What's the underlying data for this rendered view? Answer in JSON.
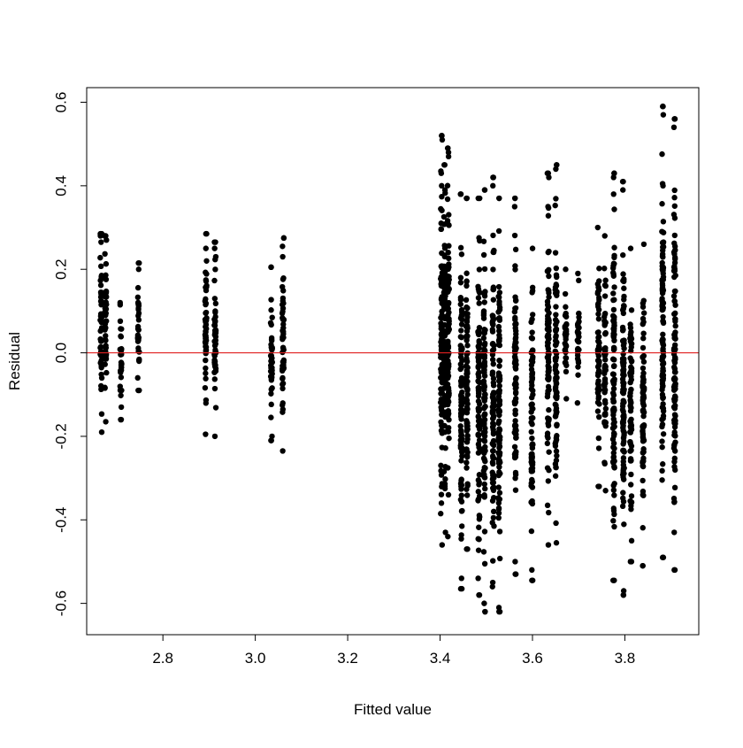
{
  "chart_data": {
    "type": "scatter",
    "title": "",
    "xlabel": "Fitted value",
    "ylabel": "Residual",
    "xlim": [
      2.635,
      3.96
    ],
    "ylim": [
      -0.675,
      0.635
    ],
    "x_ticks": [
      2.8,
      3.0,
      3.2,
      3.4,
      3.6,
      3.8
    ],
    "x_tick_labels": [
      "2.8",
      "3.0",
      "3.2",
      "3.4",
      "3.6",
      "3.8"
    ],
    "y_ticks": [
      -0.6,
      -0.4,
      -0.2,
      0.0,
      0.2,
      0.4,
      0.6
    ],
    "y_tick_labels": [
      "-0.6",
      "-0.4",
      "-0.2",
      "0.0",
      "0.2",
      "0.4",
      "0.6"
    ],
    "grid": false,
    "legend": "none",
    "point_color": "#000000",
    "reference_line": {
      "y": 0,
      "color": "#e02020"
    },
    "clusters": [
      {
        "x": 2.666,
        "y_min": -0.19,
        "y_max": 0.285,
        "points": [
          0.285,
          0.28,
          0.265
        ]
      },
      {
        "x": 2.676,
        "y_min": -0.165,
        "y_max": 0.28,
        "points": [
          0.28,
          0.27
        ]
      },
      {
        "x": 2.709,
        "y_min": -0.16,
        "y_max": 0.12,
        "points": [
          0.115,
          -0.09,
          -0.13,
          -0.16
        ]
      },
      {
        "x": 2.747,
        "y_min": -0.09,
        "y_max": 0.215,
        "points": [
          0.215,
          0.2,
          -0.02,
          -0.06,
          -0.09
        ]
      },
      {
        "x": 2.893,
        "y_min": -0.195,
        "y_max": 0.285,
        "points": [
          0.285,
          0.25,
          0.22
        ]
      },
      {
        "x": 2.913,
        "y_min": -0.2,
        "y_max": 0.265,
        "points": [
          0.265,
          0.25,
          0.23
        ]
      },
      {
        "x": 3.035,
        "y_min": -0.21,
        "y_max": 0.205,
        "points": [
          0.205,
          -0.2,
          -0.21
        ]
      },
      {
        "x": 3.06,
        "y_min": -0.235,
        "y_max": 0.275,
        "points": [
          0.275,
          0.255,
          0.23
        ]
      },
      {
        "x": 3.403,
        "y_min": -0.46,
        "y_max": 0.52,
        "points": [
          0.52,
          0.51,
          0.43,
          0.4
        ]
      },
      {
        "x": 3.41,
        "y_min": -0.43,
        "y_max": 0.45,
        "points": [
          0.45,
          0.39
        ]
      },
      {
        "x": 3.418,
        "y_min": -0.44,
        "y_max": 0.49,
        "points": [
          0.49,
          0.48,
          0.47
        ]
      },
      {
        "x": 3.446,
        "y_min": -0.565,
        "y_max": 0.38,
        "points": [
          0.38,
          -0.54,
          -0.565
        ]
      },
      {
        "x": 3.458,
        "y_min": -0.47,
        "y_max": 0.37,
        "points": [
          0.37,
          -0.47
        ]
      },
      {
        "x": 3.484,
        "y_min": -0.58,
        "y_max": 0.37,
        "points": [
          0.37,
          -0.54,
          -0.58
        ]
      },
      {
        "x": 3.496,
        "y_min": -0.62,
        "y_max": 0.39,
        "points": [
          0.39,
          -0.6,
          -0.62
        ]
      },
      {
        "x": 3.515,
        "y_min": -0.56,
        "y_max": 0.42,
        "points": [
          0.42,
          0.4,
          -0.55
        ]
      },
      {
        "x": 3.528,
        "y_min": -0.62,
        "y_max": 0.37,
        "points": [
          0.37,
          -0.61,
          -0.62
        ]
      },
      {
        "x": 3.563,
        "y_min": -0.53,
        "y_max": 0.37,
        "points": [
          0.37,
          0.35,
          -0.5,
          -0.53
        ]
      },
      {
        "x": 3.599,
        "y_min": -0.545,
        "y_max": 0.25,
        "points": [
          -0.52,
          -0.545
        ]
      },
      {
        "x": 3.634,
        "y_min": -0.46,
        "y_max": 0.43,
        "points": [
          0.43,
          0.42,
          0.35
        ]
      },
      {
        "x": 3.651,
        "y_min": -0.455,
        "y_max": 0.45,
        "points": [
          0.45,
          0.44
        ]
      },
      {
        "x": 3.672,
        "y_min": -0.11,
        "y_max": 0.2,
        "points": []
      },
      {
        "x": 3.699,
        "y_min": -0.12,
        "y_max": 0.19,
        "points": []
      },
      {
        "x": 3.743,
        "y_min": -0.32,
        "y_max": 0.3,
        "points": [
          -0.32
        ]
      },
      {
        "x": 3.757,
        "y_min": -0.33,
        "y_max": 0.28,
        "points": []
      },
      {
        "x": 3.776,
        "y_min": -0.545,
        "y_max": 0.43,
        "points": [
          0.43,
          0.42,
          0.38,
          -0.545
        ]
      },
      {
        "x": 3.797,
        "y_min": -0.58,
        "y_max": 0.41,
        "points": [
          0.41,
          0.39,
          -0.57,
          -0.58
        ]
      },
      {
        "x": 3.813,
        "y_min": -0.5,
        "y_max": 0.25,
        "points": [
          -0.45,
          -0.5
        ]
      },
      {
        "x": 3.84,
        "y_min": -0.51,
        "y_max": 0.26,
        "points": [
          -0.51
        ]
      },
      {
        "x": 3.882,
        "y_min": -0.49,
        "y_max": 0.59,
        "points": [
          0.59,
          0.57,
          0.4,
          -0.49
        ]
      },
      {
        "x": 3.908,
        "y_min": -0.52,
        "y_max": 0.56,
        "points": [
          0.56,
          0.54,
          -0.43,
          -0.52
        ]
      }
    ]
  }
}
